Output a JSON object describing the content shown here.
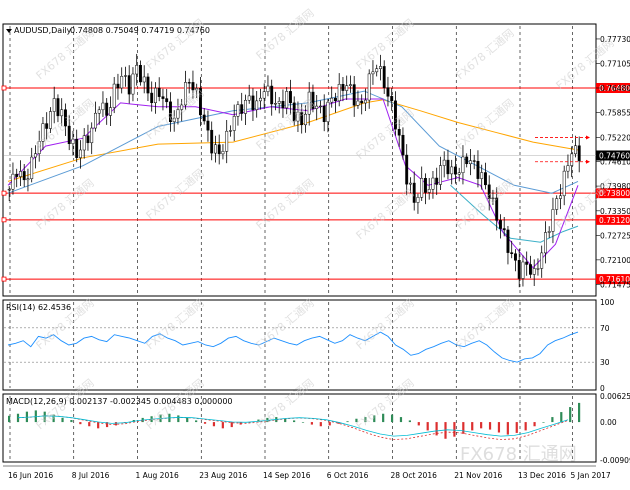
{
  "chart_data": {
    "type": "candlestick",
    "title": "AUDUSD,Daily",
    "ohlc_header": "0.74808 0.75049 0.74719 0.74760",
    "ylim": [
      0.7123,
      0.7806
    ],
    "price_ticks": [
      "0.77730",
      "0.77105",
      "0.76480",
      "0.75855",
      "0.75220",
      "0.74610",
      "0.73980",
      "0.73350",
      "0.72725",
      "0.72100",
      "0.71475"
    ],
    "x_labels": [
      "16 Jun 2016",
      "8 Jul 2016",
      "1 Aug 2016",
      "23 Aug 2016",
      "14 Sep 2016",
      "6 Oct 2016",
      "28 Oct 2016",
      "21 Nov 2016",
      "13 Dec 2016",
      "5 Jan 2017"
    ],
    "hlines": [
      {
        "label": "0.76480",
        "value": 0.7648,
        "color": "#ff0000"
      },
      {
        "label": "0.73800",
        "value": 0.738,
        "color": "#ff0000"
      },
      {
        "label": "0.73120",
        "value": 0.7312,
        "color": "#ff0000"
      },
      {
        "label": "0.71610",
        "value": 0.7161,
        "color": "#ff0000"
      }
    ],
    "current_price": {
      "label": "0.74760",
      "value": 0.7476
    },
    "close_path": [
      [
        0,
        0.739
      ],
      [
        2,
        0.744
      ],
      [
        4,
        0.741
      ],
      [
        6,
        0.7455
      ],
      [
        8,
        0.752
      ],
      [
        10,
        0.756
      ],
      [
        12,
        0.761
      ],
      [
        14,
        0.758
      ],
      [
        16,
        0.752
      ],
      [
        18,
        0.748
      ],
      [
        20,
        0.751
      ],
      [
        22,
        0.754
      ],
      [
        24,
        0.761
      ],
      [
        26,
        0.758
      ],
      [
        28,
        0.764
      ],
      [
        30,
        0.768
      ],
      [
        32,
        0.765
      ],
      [
        34,
        0.77
      ],
      [
        36,
        0.766
      ],
      [
        38,
        0.762
      ],
      [
        40,
        0.764
      ],
      [
        42,
        0.76
      ],
      [
        44,
        0.756
      ],
      [
        46,
        0.762
      ],
      [
        48,
        0.767
      ],
      [
        50,
        0.763
      ],
      [
        52,
        0.756
      ],
      [
        54,
        0.75
      ],
      [
        56,
        0.748
      ],
      [
        58,
        0.752
      ],
      [
        60,
        0.758
      ],
      [
        62,
        0.76
      ],
      [
        64,
        0.762
      ],
      [
        66,
        0.76
      ],
      [
        68,
        0.765
      ],
      [
        70,
        0.762
      ],
      [
        72,
        0.76
      ],
      [
        74,
        0.763
      ],
      [
        76,
        0.758
      ],
      [
        78,
        0.756
      ],
      [
        80,
        0.762
      ],
      [
        82,
        0.76
      ],
      [
        84,
        0.758
      ],
      [
        86,
        0.762
      ],
      [
        88,
        0.764
      ],
      [
        90,
        0.766
      ],
      [
        92,
        0.762
      ],
      [
        94,
        0.76
      ],
      [
        96,
        0.767
      ],
      [
        98,
        0.771
      ],
      [
        100,
        0.766
      ],
      [
        102,
        0.76
      ],
      [
        104,
        0.752
      ],
      [
        106,
        0.742
      ],
      [
        108,
        0.736
      ],
      [
        110,
        0.74
      ],
      [
        112,
        0.739
      ],
      [
        114,
        0.742
      ],
      [
        116,
        0.746
      ],
      [
        118,
        0.743
      ],
      [
        120,
        0.744
      ],
      [
        122,
        0.747
      ],
      [
        124,
        0.745
      ],
      [
        126,
        0.742
      ],
      [
        128,
        0.738
      ],
      [
        130,
        0.732
      ],
      [
        132,
        0.727
      ],
      [
        134,
        0.722
      ],
      [
        136,
        0.718
      ],
      [
        138,
        0.72
      ],
      [
        140,
        0.717
      ],
      [
        142,
        0.723
      ],
      [
        144,
        0.73
      ],
      [
        146,
        0.736
      ],
      [
        148,
        0.742
      ],
      [
        150,
        0.749
      ],
      [
        152,
        0.7476
      ]
    ],
    "ma_slow": [
      [
        0,
        0.741
      ],
      [
        20,
        0.747
      ],
      [
        40,
        0.7505
      ],
      [
        60,
        0.751
      ],
      [
        80,
        0.756
      ],
      [
        95,
        0.761
      ],
      [
        100,
        0.7618
      ],
      [
        110,
        0.759
      ],
      [
        120,
        0.756
      ],
      [
        130,
        0.7535
      ],
      [
        140,
        0.751
      ],
      [
        152,
        0.749
      ]
    ],
    "ma_mid": [
      [
        0,
        0.738
      ],
      [
        20,
        0.745
      ],
      [
        40,
        0.755
      ],
      [
        60,
        0.759
      ],
      [
        80,
        0.761
      ],
      [
        95,
        0.764
      ],
      [
        105,
        0.76
      ],
      [
        115,
        0.75
      ],
      [
        125,
        0.745
      ],
      [
        135,
        0.74
      ],
      [
        145,
        0.738
      ],
      [
        152,
        0.741
      ]
    ],
    "ma_fast_1": [
      [
        118,
        0.74
      ],
      [
        126,
        0.733
      ],
      [
        134,
        0.7265
      ],
      [
        142,
        0.7255
      ],
      [
        148,
        0.7282
      ],
      [
        152,
        0.7296
      ]
    ],
    "ma_fast_2": [
      [
        0,
        0.74
      ],
      [
        10,
        0.75
      ],
      [
        20,
        0.752
      ],
      [
        30,
        0.761
      ],
      [
        40,
        0.76
      ],
      [
        50,
        0.76
      ],
      [
        60,
        0.758
      ],
      [
        70,
        0.76
      ],
      [
        80,
        0.759
      ],
      [
        90,
        0.762
      ],
      [
        100,
        0.762
      ],
      [
        106,
        0.745
      ],
      [
        112,
        0.74
      ],
      [
        120,
        0.742
      ],
      [
        126,
        0.74
      ],
      [
        132,
        0.728
      ],
      [
        140,
        0.719
      ],
      [
        146,
        0.725
      ],
      [
        152,
        0.74
      ]
    ],
    "rsi": {
      "label": "RSI(14) 62.4536",
      "ticks": [
        "100",
        "70",
        "30",
        "0"
      ],
      "ylim": [
        0,
        100
      ],
      "values": [
        50,
        52,
        55,
        48,
        60,
        58,
        62,
        55,
        50,
        52,
        58,
        60,
        56,
        54,
        62,
        60,
        58,
        55,
        52,
        60,
        63,
        58,
        55,
        50,
        52,
        54,
        50,
        48,
        52,
        58,
        60,
        55,
        52,
        50,
        54,
        58,
        55,
        52,
        50,
        55,
        58,
        60,
        56,
        52,
        55,
        62,
        58,
        55,
        60,
        65,
        60,
        50,
        45,
        38,
        40,
        45,
        48,
        52,
        55,
        50,
        48,
        52,
        55,
        50,
        42,
        35,
        32,
        30,
        34,
        35,
        40,
        50,
        55,
        58,
        62,
        65
      ]
    },
    "macd": {
      "label": "MACD(12,26,9) 0.002137 -0.002345 0.004483 0.000000",
      "ticks": [
        "0.006254",
        "0.00",
        "-0.009093"
      ],
      "ylim": [
        -0.009093,
        0.006254
      ],
      "hist": [
        0.0015,
        0.002,
        0.0025,
        0.0028,
        0.0025,
        0.0018,
        0.001,
        0.0005,
        -0.0005,
        -0.001,
        -0.0015,
        -0.0012,
        -0.0008,
        -0.0002,
        0.0005,
        0.001,
        0.0014,
        0.0018,
        0.002,
        0.0016,
        0.001,
        0.0004,
        -0.0004,
        -0.001,
        -0.0015,
        -0.0012,
        -0.0006,
        0.0,
        0.0006,
        0.001,
        0.0012,
        0.0008,
        0.0004,
        0.0,
        -0.0006,
        -0.001,
        -0.0008,
        -0.0004,
        0.0002,
        0.0008,
        0.0012,
        0.0016,
        0.002,
        0.0018,
        0.0012,
        0.0004,
        -0.0008,
        -0.002,
        -0.0032,
        -0.004,
        -0.0035,
        -0.0028,
        -0.002,
        -0.0015,
        -0.0018,
        -0.0025,
        -0.003,
        -0.0026,
        -0.002,
        -0.001,
        0.0,
        0.0012,
        0.0024,
        0.0036,
        0.0046
      ],
      "signal": [
        0.001,
        0.0012,
        0.0015,
        0.0014,
        0.001,
        0.0004,
        -0.0002,
        -0.0006,
        -0.0004,
        0.0002,
        0.0006,
        0.0009,
        0.0011,
        0.001,
        0.0006,
        0.0002,
        -0.0002,
        -0.0003,
        0.0,
        0.0004,
        0.0008,
        0.001,
        0.0008,
        0.0004,
        -0.0004,
        -0.0014,
        -0.0026,
        -0.0036,
        -0.0042,
        -0.004,
        -0.0034,
        -0.0028,
        -0.0024,
        -0.0026,
        -0.0032,
        -0.0038,
        -0.0042,
        -0.004,
        -0.0032,
        -0.002,
        -0.0008,
        0.0004
      ]
    }
  },
  "watermark": "FX678 汇通网"
}
